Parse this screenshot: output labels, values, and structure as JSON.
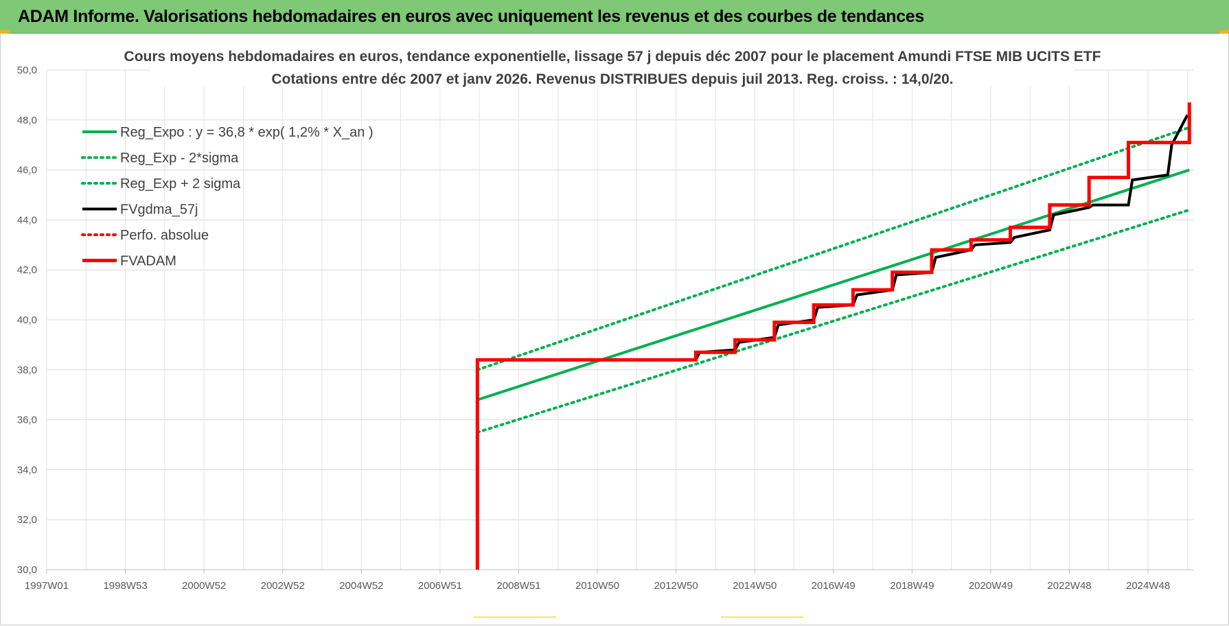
{
  "header": {
    "title": "ADAM Informe. Valorisations hebdomadaires en euros avec uniquement les revenus et des courbes de tendances"
  },
  "chart_data": {
    "type": "line",
    "title": "Cours moyens hebdomadaires en euros, tendance exponentielle, lissage 57 j depuis déc 2007 pour le placement Amundi FTSE MIB UCITS ETF",
    "subtitle": "Cotations entre déc 2007 et janv 2026. Revenus DISTRIBUES depuis juil 2013. Reg. croiss. : 14,0/20.",
    "xlabel": "",
    "ylabel": "",
    "ylim": [
      30,
      50
    ],
    "y_ticks": [
      "30,0",
      "32,0",
      "34,0",
      "36,0",
      "38,0",
      "40,0",
      "42,0",
      "44,0",
      "46,0",
      "48,0",
      "50,0"
    ],
    "x_ticks": [
      "1997W01",
      "1998W53",
      "2000W52",
      "2002W52",
      "2004W52",
      "2006W51",
      "2008W51",
      "2010W50",
      "2012W50",
      "2014W50",
      "2016W49",
      "2018W49",
      "2020W49",
      "2022W48",
      "2024W48"
    ],
    "grid": true,
    "legend_position": "top-left",
    "series": [
      {
        "name": "Reg_Expo : y = 36,8 * exp( 1,2% *  X_an )",
        "color": "#00b050",
        "style": "solid",
        "x": [
          2007.95,
          2026.05
        ],
        "y": [
          36.8,
          46.0
        ]
      },
      {
        "name": "Reg_Exp - 2*sigma",
        "color": "#00b050",
        "style": "dotted",
        "x": [
          2007.95,
          2026.05
        ],
        "y": [
          35.5,
          44.4
        ]
      },
      {
        "name": "Reg_Exp + 2 sigma",
        "color": "#00b050",
        "style": "dotted",
        "x": [
          2007.95,
          2026.05
        ],
        "y": [
          38.0,
          47.7
        ]
      },
      {
        "name": "FVgdma_57j",
        "color": "#000000",
        "style": "solid",
        "x": [
          2007.95,
          2013.5,
          2013.6,
          2014.5,
          2014.6,
          2015.5,
          2015.6,
          2016.5,
          2016.6,
          2017.5,
          2017.6,
          2018.5,
          2018.6,
          2019.5,
          2019.6,
          2020.5,
          2020.6,
          2021.5,
          2021.6,
          2022.5,
          2022.6,
          2023.5,
          2023.6,
          2024.5,
          2024.6,
          2025.5,
          2025.6,
          2026.0
        ],
        "y": [
          38.4,
          38.4,
          38.7,
          38.8,
          39.1,
          39.3,
          39.8,
          40.0,
          40.5,
          40.6,
          41.0,
          41.2,
          41.8,
          41.9,
          42.5,
          42.8,
          43.0,
          43.1,
          43.3,
          43.6,
          44.2,
          44.5,
          44.6,
          44.6,
          45.6,
          45.8,
          47.0,
          48.2
        ]
      },
      {
        "name": "Perfo. absolue",
        "color": "#ff0000",
        "style": "dotted",
        "x": [],
        "y": []
      },
      {
        "name": "FVADAM",
        "color": "#ff0000",
        "style": "solid-thick",
        "x": [
          2007.95,
          2007.95,
          2013.5,
          2013.5,
          2014.5,
          2014.5,
          2015.5,
          2015.5,
          2016.5,
          2016.5,
          2017.5,
          2017.5,
          2018.5,
          2018.5,
          2019.5,
          2019.5,
          2020.5,
          2020.5,
          2021.5,
          2021.5,
          2022.5,
          2022.5,
          2023.5,
          2023.5,
          2024.5,
          2024.5,
          2025.5,
          2025.5,
          2026.05,
          2026.05
        ],
        "y": [
          30.0,
          38.4,
          38.4,
          38.7,
          38.7,
          39.2,
          39.2,
          39.9,
          39.9,
          40.6,
          40.6,
          41.2,
          41.2,
          41.9,
          41.9,
          42.8,
          42.8,
          43.2,
          43.2,
          43.7,
          43.7,
          44.6,
          44.6,
          45.7,
          45.7,
          47.1,
          47.1,
          47.1,
          47.1,
          48.7
        ]
      }
    ]
  }
}
